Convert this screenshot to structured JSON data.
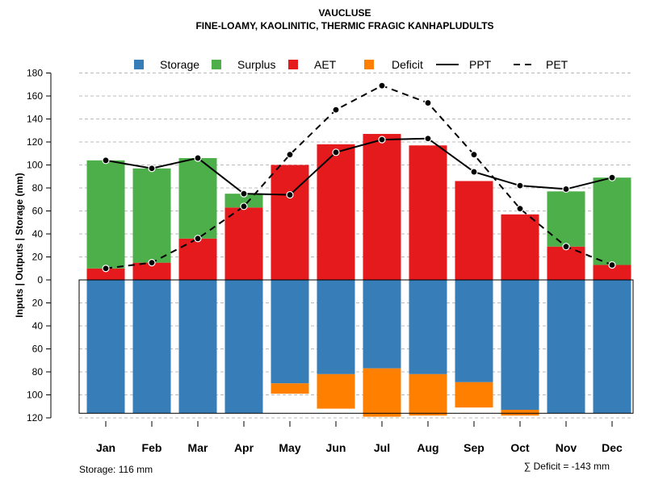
{
  "chart_data": {
    "type": "bar",
    "title": "VAUCLUSE",
    "subtitle": "FINE-LOAMY, KAOLINITIC, THERMIC FRAGIC KANHAPLUDULTS",
    "ylabel": "Inputs | Outputs | Storage     (mm)",
    "ylim": [
      -120,
      180
    ],
    "y_ticks": [
      {
        "value": 180,
        "label": "180"
      },
      {
        "value": 160,
        "label": "160"
      },
      {
        "value": 140,
        "label": "140"
      },
      {
        "value": 120,
        "label": "120"
      },
      {
        "value": 100,
        "label": "100"
      },
      {
        "value": 80,
        "label": "80"
      },
      {
        "value": 60,
        "label": "60"
      },
      {
        "value": 40,
        "label": "40"
      },
      {
        "value": 20,
        "label": "20"
      },
      {
        "value": 0,
        "label": "0"
      },
      {
        "value": -20,
        "label": "20"
      },
      {
        "value": -40,
        "label": "40"
      },
      {
        "value": -60,
        "label": "60"
      },
      {
        "value": -80,
        "label": "80"
      },
      {
        "value": -100,
        "label": "100"
      },
      {
        "value": -120,
        "label": "120"
      }
    ],
    "categories": [
      "Jan",
      "Feb",
      "Mar",
      "Apr",
      "May",
      "Jun",
      "Jul",
      "Aug",
      "Sep",
      "Oct",
      "Nov",
      "Dec"
    ],
    "legend": [
      "Storage",
      "Surplus",
      "AET",
      "Deficit",
      "PPT",
      "PET"
    ],
    "colors": {
      "storage": "#377eb8",
      "surplus": "#4daf4a",
      "aet": "#e41a1c",
      "deficit": "#ff7f00",
      "line": "#000000",
      "grid": "#bbbbbb"
    },
    "storage_capacity": 116,
    "series": [
      {
        "name": "AET",
        "values": [
          10,
          15,
          36,
          63,
          100,
          118,
          127,
          117,
          86,
          57,
          29,
          13
        ]
      },
      {
        "name": "Surplus",
        "values": [
          94,
          82,
          70,
          12,
          0,
          0,
          0,
          0,
          0,
          0,
          48,
          76
        ]
      },
      {
        "name": "Storage",
        "values": [
          116,
          116,
          116,
          116,
          90,
          82,
          77,
          82,
          89,
          113,
          116,
          116
        ]
      },
      {
        "name": "Deficit",
        "values": [
          0,
          0,
          0,
          0,
          9,
          30,
          42,
          36,
          22,
          5,
          0,
          0
        ]
      },
      {
        "name": "PPT",
        "values": [
          104,
          97,
          106,
          75,
          74,
          111,
          122,
          123,
          94,
          82,
          79,
          89
        ]
      },
      {
        "name": "PET",
        "values": [
          10,
          15,
          36,
          64,
          109,
          148,
          169,
          154,
          109,
          62,
          29,
          13
        ]
      }
    ],
    "storage_note": "Storage: 116 mm",
    "deficit_note": "∑ Deficit = -143 mm"
  }
}
